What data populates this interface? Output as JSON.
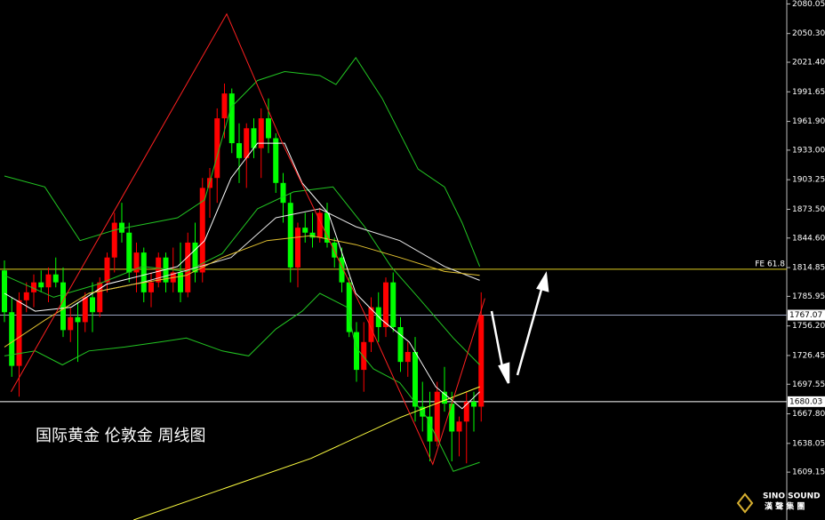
{
  "chart_data": {
    "type": "candlestick",
    "title": "国际黄金 伦敦金 周线图",
    "ylim": [
      1561,
      2084
    ],
    "yticks": [
      2080.05,
      {
        "value": 2050.3,
        "label": "2050.30"
      },
      {
        "value": 2021.4,
        "label": "2021.40"
      },
      1991.65,
      {
        "value": 1961.9,
        "label": "1961.90"
      },
      {
        "value": 1933,
        "label": "1933.00"
      },
      1903.25,
      {
        "value": 1873.5,
        "label": "1873.50"
      },
      {
        "value": 1844.6,
        "label": "1844.60"
      },
      1814.85,
      1785.95,
      {
        "value": 1756.2,
        "label": "1756.20"
      },
      1726.45,
      1697.55,
      {
        "value": 1667.8,
        "label": "1667.80"
      },
      1638.05,
      1609.15
    ],
    "up_color": "#ff0000",
    "down_color": "#00ff00",
    "open": [
      1812,
      1770,
      1716,
      1782,
      1790,
      1800,
      1795,
      1808,
      1800,
      1752,
      1765,
      1760,
      1785,
      1770,
      1800,
      1825,
      1860,
      1850,
      1810,
      1830,
      1790,
      1800,
      1825,
      1800,
      1810,
      1790,
      1840,
      1810,
      1895,
      1905,
      1965,
      1990,
      1940,
      1925,
      1955,
      1935,
      1965,
      1945,
      1900,
      1880,
      1815,
      1855,
      1850,
      1845,
      1870,
      1840,
      1825,
      1800,
      1750,
      1712,
      1740,
      1775,
      1755,
      1800,
      1755,
      1720,
      1730,
      1675,
      1665,
      1640,
      1690,
      1678,
      1650,
      1660,
      1680,
      1675
    ],
    "high": [
      1822,
      1785,
      1790,
      1800,
      1808,
      1812,
      1815,
      1825,
      1815,
      1775,
      1780,
      1790,
      1800,
      1805,
      1830,
      1870,
      1880,
      1860,
      1840,
      1835,
      1810,
      1830,
      1830,
      1835,
      1840,
      1850,
      1860,
      1905,
      1915,
      1975,
      2000,
      1995,
      1960,
      1960,
      1965,
      1975,
      1985,
      1950,
      1910,
      1890,
      1860,
      1870,
      1870,
      1875,
      1880,
      1845,
      1835,
      1805,
      1760,
      1760,
      1785,
      1790,
      1805,
      1810,
      1765,
      1740,
      1745,
      1700,
      1690,
      1700,
      1715,
      1690,
      1665,
      1690,
      1690,
      1790
    ],
    "low": [
      1760,
      1705,
      1685,
      1770,
      1775,
      1790,
      1780,
      1795,
      1745,
      1740,
      1720,
      1750,
      1750,
      1765,
      1790,
      1810,
      1840,
      1800,
      1790,
      1780,
      1775,
      1795,
      1790,
      1790,
      1780,
      1785,
      1800,
      1800,
      1865,
      1880,
      1945,
      1930,
      1900,
      1895,
      1925,
      1905,
      1930,
      1890,
      1860,
      1800,
      1795,
      1840,
      1835,
      1840,
      1835,
      1815,
      1790,
      1745,
      1700,
      1690,
      1730,
      1740,
      1745,
      1750,
      1710,
      1705,
      1660,
      1650,
      1620,
      1635,
      1670,
      1620,
      1625,
      1618,
      1650,
      1660
    ],
    "close": [
      1770,
      1716,
      1782,
      1790,
      1800,
      1795,
      1808,
      1800,
      1752,
      1765,
      1760,
      1785,
      1770,
      1800,
      1825,
      1860,
      1850,
      1810,
      1830,
      1790,
      1800,
      1825,
      1800,
      1810,
      1790,
      1840,
      1810,
      1895,
      1905,
      1965,
      1990,
      1940,
      1925,
      1955,
      1935,
      1965,
      1945,
      1900,
      1880,
      1815,
      1855,
      1850,
      1845,
      1870,
      1840,
      1825,
      1800,
      1750,
      1712,
      1740,
      1775,
      1755,
      1800,
      1755,
      1720,
      1730,
      1675,
      1665,
      1640,
      1690,
      1678,
      1650,
      1660,
      1680,
      1675,
      1767
    ],
    "overlays": [
      {
        "color": "#22c522",
        "x": [
          0,
          5.5,
          10.3,
          15.2,
          23.6,
          27.3,
          30.9,
          34.5,
          38.2,
          43,
          45.2,
          47.9,
          51.5,
          56.4,
          60,
          62.4,
          64.8
        ],
        "values": [
          1907,
          1896,
          1842,
          1853,
          1865,
          1883,
          1976,
          2003,
          2012,
          2008,
          1999,
          2026,
          1985,
          1914,
          1896,
          1860,
          1816
        ]
      },
      {
        "color": "#22c522",
        "x": [
          0,
          4.2,
          7.9,
          11.5,
          16.4,
          21.2,
          24.8,
          29.7,
          33.3,
          37,
          40.6,
          43,
          46.7,
          47.9,
          50.3,
          53.9,
          57.6,
          61.2,
          64.8
        ],
        "values": [
          1726,
          1731,
          1717,
          1731,
          1735,
          1740,
          1744,
          1731,
          1726,
          1753,
          1771,
          1789,
          1775,
          1735,
          1713,
          1699,
          1664,
          1610,
          1619
        ]
      },
      {
        "color": "#22c522",
        "x": [
          0,
          6.7,
          12.7,
          18.8,
          24.8,
          29.7,
          34.5,
          39.4,
          44.8,
          49.1,
          52.7,
          56.4,
          61.2,
          64.8
        ],
        "values": [
          1807,
          1785,
          1798,
          1816,
          1811,
          1829,
          1874,
          1891,
          1896,
          1856,
          1816,
          1785,
          1744,
          1717
        ]
      },
      {
        "color": "#ffffff",
        "x": [
          0,
          4.2,
          9.1,
          13.9,
          18.8,
          23.6,
          27.3,
          30.9,
          34.5,
          38.2,
          40.6,
          44.2,
          47.9,
          51.5,
          55.2,
          58.8,
          62.4,
          64.8
        ],
        "values": [
          1789,
          1771,
          1775,
          1798,
          1807,
          1816,
          1842,
          1905,
          1940,
          1940,
          1900,
          1869,
          1789,
          1762,
          1740,
          1695,
          1673,
          1690
        ]
      },
      {
        "color": "#e8e8e8",
        "x": [
          11.5,
          18.8,
          24.8,
          30.9,
          37,
          43,
          47.9,
          53.9,
          60,
          64.8
        ],
        "values": [
          1789,
          1800,
          1812,
          1825,
          1865,
          1874,
          1856,
          1842,
          1816,
          1802
        ]
      },
      {
        "color": "#e0c030",
        "x": [
          0,
          5.5,
          11.5,
          17.6,
          24.8,
          29.7,
          35.8,
          41.8,
          47.9,
          53.9,
          60,
          64.8
        ],
        "values": [
          1735,
          1762,
          1789,
          1798,
          1807,
          1825,
          1842,
          1847,
          1838,
          1825,
          1811,
          1807
        ]
      },
      {
        "color": "#ffff40",
        "x": [
          17.6,
          29.7,
          41.8,
          53.9,
          64.8
        ],
        "values": [
          1561,
          1592,
          1623,
          1664,
          1695
        ]
      },
      {
        "color": "#ff2020",
        "x": [
          0.9,
          30.3,
          37.9,
          49,
          58.4,
          65.5
        ],
        "values": [
          1690,
          2070,
          1940,
          1770,
          1617,
          1784
        ]
      }
    ],
    "levels": [
      {
        "value": 1813.2,
        "label": "FE 61.8",
        "color": "#e0d020"
      },
      {
        "value": 1767.07,
        "color": "#9aa4c0"
      },
      {
        "value": 1680.03,
        "color": "#ffffff"
      }
    ]
  },
  "logo": {
    "name": "SINO SOUND",
    "sub": "漢 聲 集 團"
  }
}
